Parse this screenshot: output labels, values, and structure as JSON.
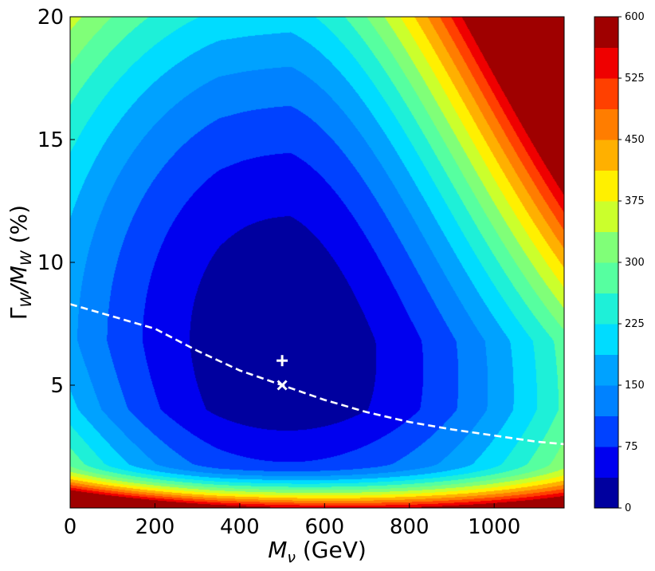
{
  "chart_data": {
    "type": "heatmap",
    "subtype": "filled-contour",
    "colormap": "jet",
    "xlabel": "M_ν (GeV)",
    "ylabel": "Γ_W/M_W (%)",
    "xlim": [
      0,
      1165
    ],
    "ylim": [
      0,
      20
    ],
    "x_ticks": [
      0,
      200,
      400,
      600,
      800,
      1000
    ],
    "y_ticks": [
      5,
      10,
      15,
      20
    ],
    "colorbar": {
      "min": 0,
      "max": 600,
      "levels": [
        0,
        37.5,
        75,
        112.5,
        150,
        187.5,
        225,
        262.5,
        300,
        337.5,
        375,
        412.5,
        450,
        487.5,
        525,
        562.5,
        600
      ],
      "tick_values": [
        0,
        75,
        150,
        225,
        300,
        375,
        450,
        525,
        600
      ],
      "tick_labels": [
        "0",
        "75",
        "150",
        "225",
        "300",
        "375",
        "450",
        "525",
        "600"
      ],
      "colors": [
        "#00009f",
        "#0000ef",
        "#0042ff",
        "#0082ff",
        "#00a2ff",
        "#00dcff",
        "#1ef0d8",
        "#56ffa0",
        "#80ff78",
        "#cbff2c",
        "#fff000",
        "#ffb000",
        "#ff7d00",
        "#ff4000",
        "#ef0000",
        "#9f0000"
      ]
    },
    "field": {
      "baseline": 5,
      "note": "value grows away from a minimum near (M_ν≈500 GeV, Γ_W/M_W≈6%)",
      "minimum_point": {
        "x": 520,
        "y": 6.8,
        "value": 5
      }
    },
    "markers": [
      {
        "name": "plus",
        "symbol": "+",
        "x": 500,
        "y": 6.0,
        "color": "#ffffff"
      },
      {
        "name": "cross",
        "symbol": "×",
        "x": 500,
        "y": 5.0,
        "color": "#ffffff"
      }
    ],
    "dashed_curve": {
      "color": "#ffffff",
      "style": "dashed",
      "points": [
        [
          0,
          8.3
        ],
        [
          100,
          7.8
        ],
        [
          200,
          7.3
        ],
        [
          300,
          6.4
        ],
        [
          400,
          5.6
        ],
        [
          500,
          5.0
        ],
        [
          600,
          4.4
        ],
        [
          700,
          3.9
        ],
        [
          800,
          3.5
        ],
        [
          900,
          3.2
        ],
        [
          1000,
          2.95
        ],
        [
          1100,
          2.7
        ],
        [
          1165,
          2.6
        ]
      ]
    },
    "grid": false
  }
}
